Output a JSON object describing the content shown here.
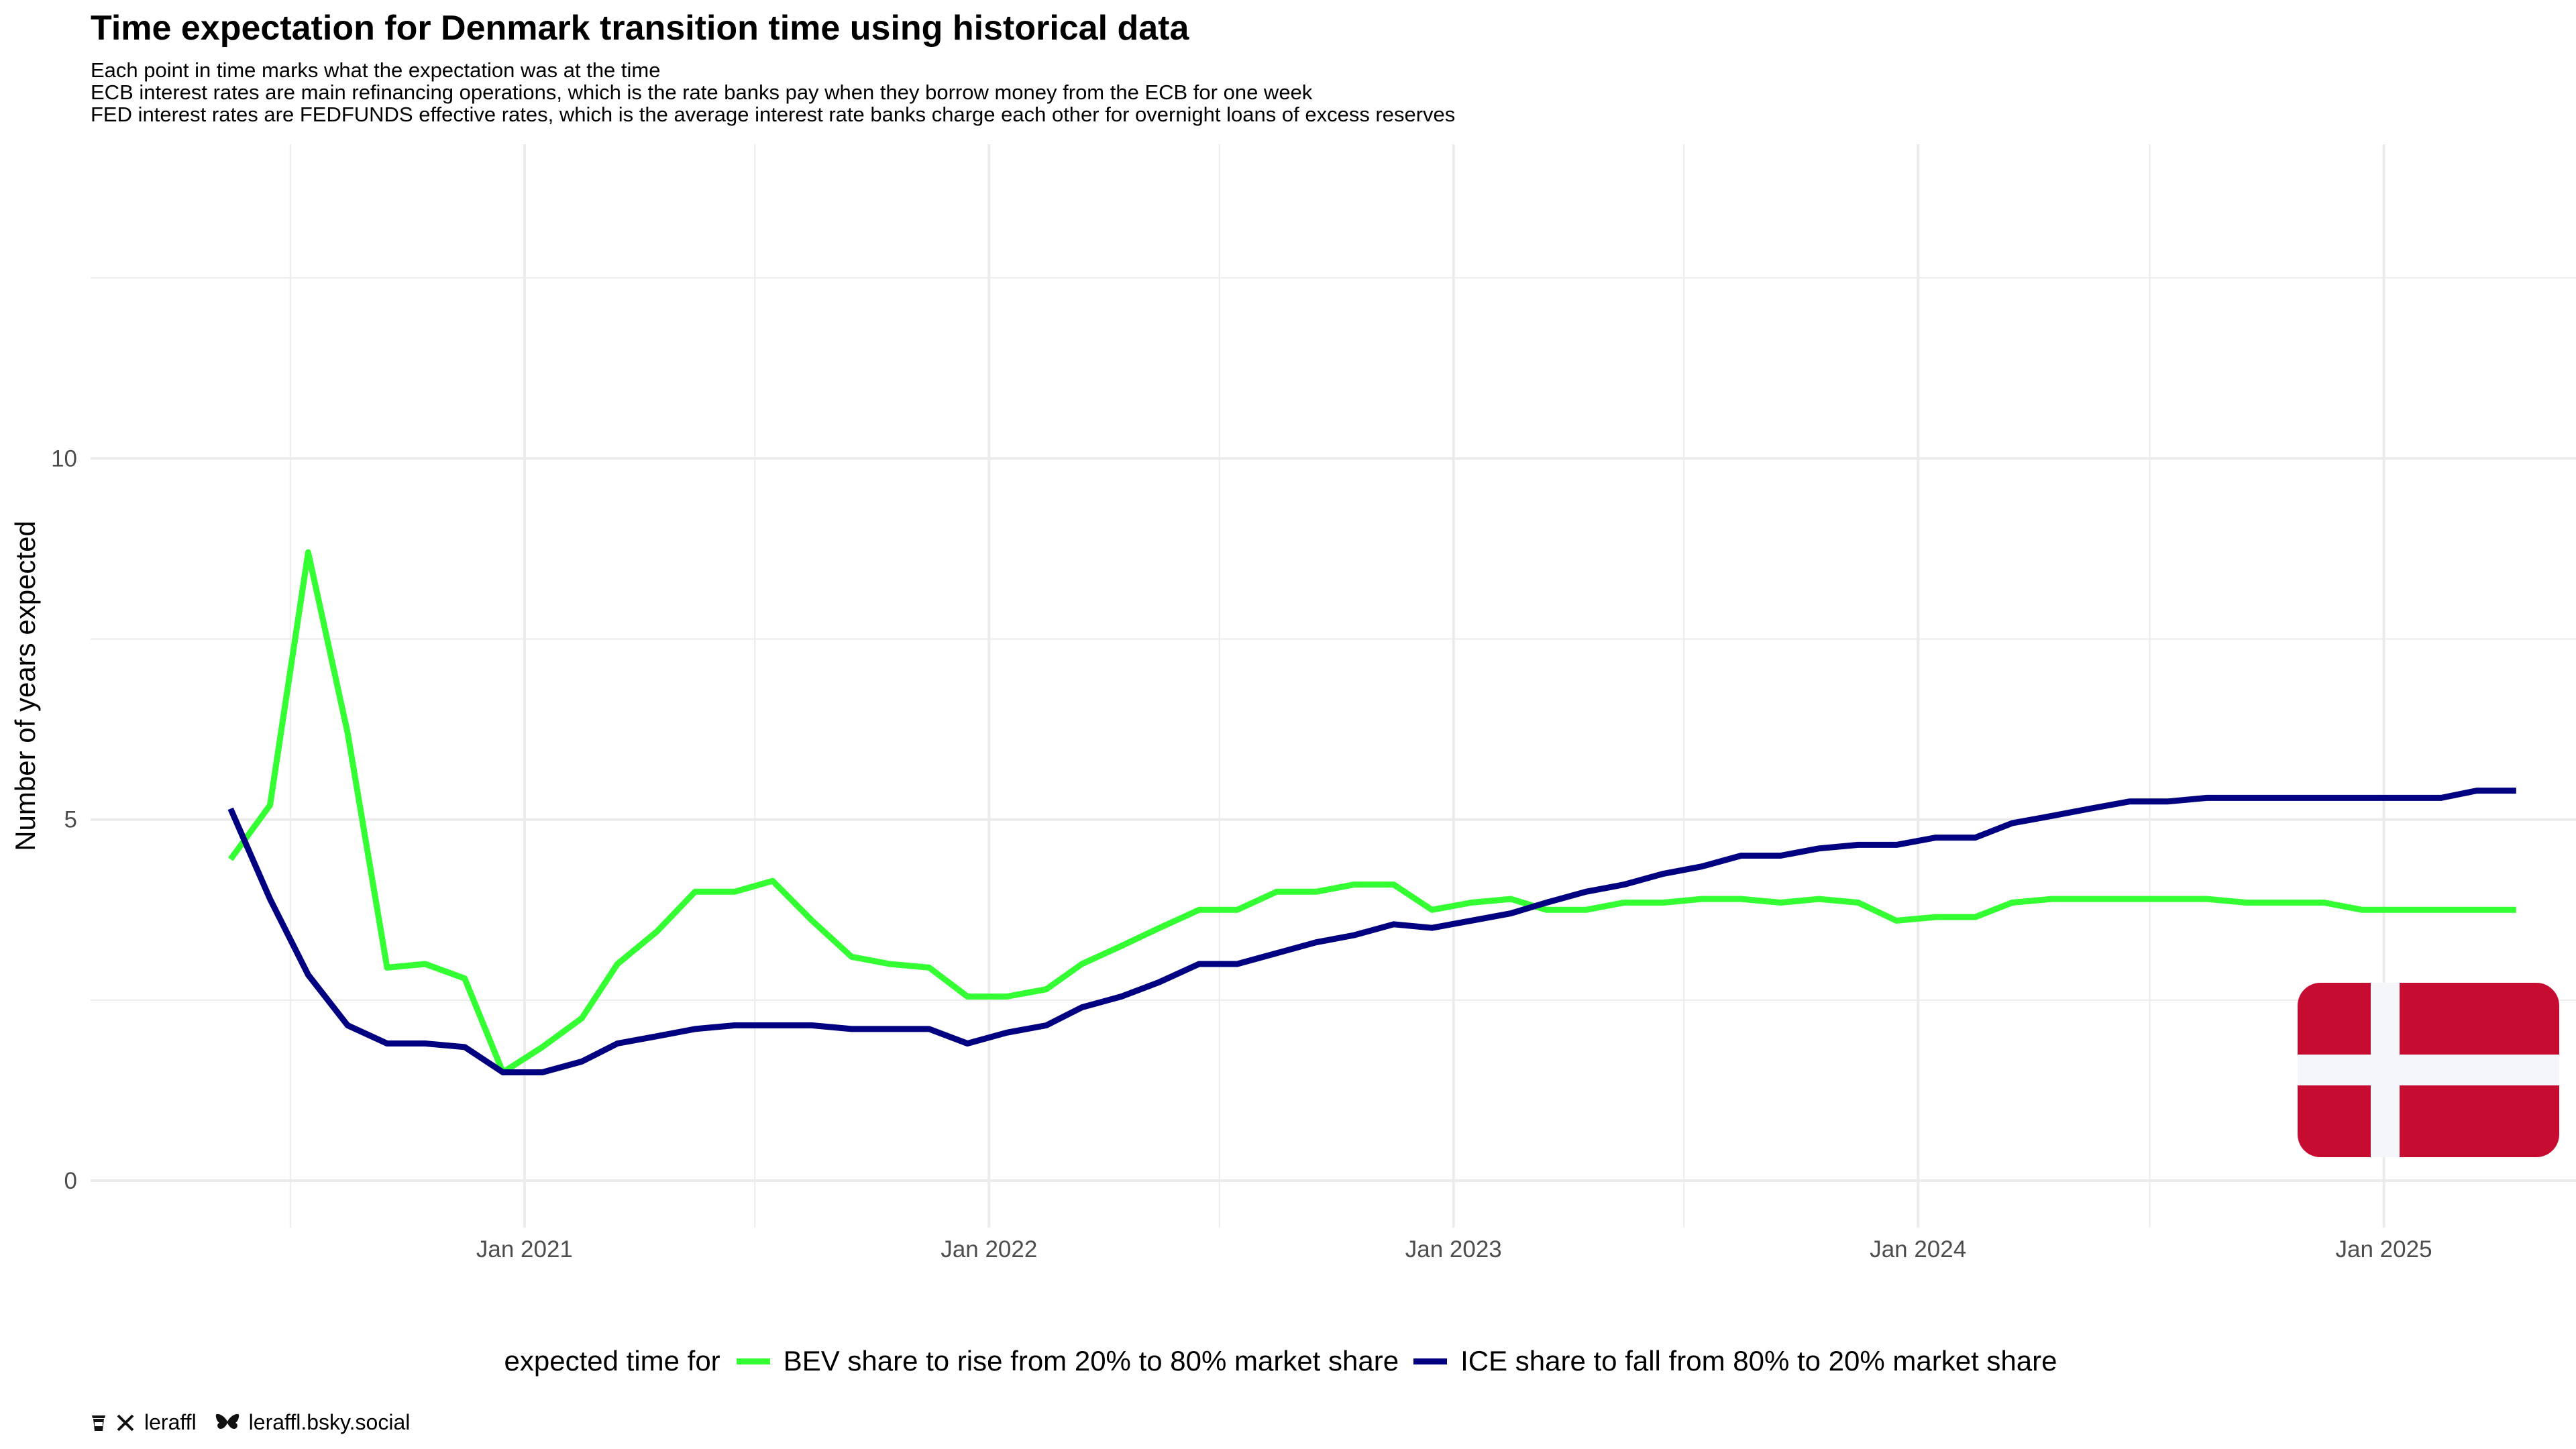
{
  "title": "Time expectation for Denmark transition time using historical data",
  "subtitle": [
    "Each point in time marks what the expectation was at the time",
    "ECB interest rates are main refinancing operations, which is the rate banks pay when they borrow money from the ECB for one week",
    "FED interest rates are FEDFUNDS effective rates, which is the average interest rate banks charge each other for overnight loans of excess reserves"
  ],
  "legend": {
    "title": "expected time for"
  },
  "caption": {
    "handle": "leraffl",
    "bluesky": "leraffl.bsky.social",
    "icons": [
      "coffee-icon",
      "x-logo-icon",
      "butterfly-icon"
    ]
  },
  "flag": {
    "name": "Denmark",
    "color": "#c60c30",
    "cross_color": "#f5f6fa"
  },
  "chart_data": {
    "type": "line",
    "title": "Time expectation for Denmark transition time using historical data",
    "xlabel": "",
    "ylabel": "Number of years expected",
    "x": [
      "2020-05",
      "2020-06",
      "2020-07",
      "2020-08",
      "2020-09",
      "2020-10",
      "2020-11",
      "2020-12",
      "2021-01",
      "2021-02",
      "2021-03",
      "2021-04",
      "2021-05",
      "2021-06",
      "2021-07",
      "2021-08",
      "2021-09",
      "2021-10",
      "2021-11",
      "2021-12",
      "2022-01",
      "2022-02",
      "2022-03",
      "2022-04",
      "2022-05",
      "2022-06",
      "2022-07",
      "2022-08",
      "2022-09",
      "2022-10",
      "2022-11",
      "2022-12",
      "2023-01",
      "2023-02",
      "2023-03",
      "2023-04",
      "2023-05",
      "2023-06",
      "2023-07",
      "2023-08",
      "2023-09",
      "2023-10",
      "2023-11",
      "2023-12",
      "2024-01",
      "2024-02",
      "2024-03",
      "2024-04",
      "2024-05",
      "2024-06",
      "2024-07",
      "2024-08",
      "2024-09",
      "2024-10",
      "2024-11",
      "2024-12",
      "2025-01",
      "2025-02",
      "2025-03",
      "2025-04"
    ],
    "series": [
      {
        "name": "BEV share to rise from 20% to 80% market share",
        "color": "#33ff33",
        "values": [
          4.45,
          5.2,
          8.7,
          6.2,
          2.95,
          3.0,
          2.8,
          1.5,
          1.85,
          2.25,
          3.0,
          3.45,
          4.0,
          4.0,
          4.15,
          3.6,
          3.1,
          3.0,
          2.95,
          2.55,
          2.55,
          2.65,
          3.0,
          3.25,
          3.5,
          3.75,
          3.75,
          4.0,
          4.0,
          4.1,
          4.1,
          3.75,
          3.85,
          3.9,
          3.75,
          3.75,
          3.85,
          3.85,
          3.9,
          3.9,
          3.85,
          3.9,
          3.85,
          3.6,
          3.65,
          3.65,
          3.85,
          3.9,
          3.9,
          3.9,
          3.9,
          3.9,
          3.85,
          3.85,
          3.85,
          3.75,
          3.75,
          3.75,
          3.75,
          3.75
        ]
      },
      {
        "name": "ICE share to fall from 80% to 20% market share",
        "color": "#000080",
        "values": [
          5.15,
          3.9,
          2.85,
          2.15,
          1.9,
          1.9,
          1.85,
          1.5,
          1.5,
          1.65,
          1.9,
          2.0,
          2.1,
          2.15,
          2.15,
          2.15,
          2.1,
          2.1,
          2.1,
          1.9,
          2.05,
          2.15,
          2.4,
          2.55,
          2.75,
          3.0,
          3.0,
          3.15,
          3.3,
          3.4,
          3.55,
          3.5,
          3.6,
          3.7,
          3.85,
          4.0,
          4.1,
          4.25,
          4.35,
          4.5,
          4.5,
          4.6,
          4.65,
          4.65,
          4.75,
          4.75,
          4.95,
          5.05,
          5.15,
          5.25,
          5.25,
          5.3,
          5.3,
          5.3,
          5.3,
          5.3,
          5.3,
          5.3,
          5.4,
          5.4
        ]
      }
    ],
    "yticks": [
      0,
      5,
      10
    ],
    "xticks": [
      "Jan 2021",
      "Jan 2022",
      "Jan 2023",
      "Jan 2024",
      "Jan 2025"
    ],
    "ylim": [
      -0.65,
      14.35
    ],
    "xlim": [
      "2020-01-26",
      "2025-06-01"
    ],
    "grid": true,
    "legend_position": "bottom"
  }
}
